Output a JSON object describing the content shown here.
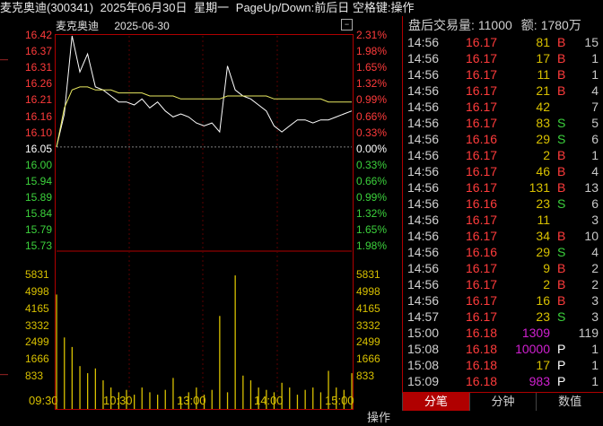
{
  "title": {
    "name_code": "麦克奥迪(300341)",
    "date": "2025年06月30日",
    "weekday": "星期一",
    "hint": "PageUp/Down:前后日 空格键:操作"
  },
  "chart": {
    "stock_name": "麦克奥迪",
    "date": "2025-06-30",
    "toggle_icon": "minus-box-icon",
    "price_labels": [
      {
        "price": "16.42",
        "pct": "2.31%",
        "kind": "up"
      },
      {
        "price": "16.37",
        "pct": "1.98%",
        "kind": "up"
      },
      {
        "price": "16.31",
        "pct": "1.65%",
        "kind": "up"
      },
      {
        "price": "16.26",
        "pct": "1.32%",
        "kind": "up"
      },
      {
        "price": "16.21",
        "pct": "0.99%",
        "kind": "up"
      },
      {
        "price": "16.16",
        "pct": "0.66%",
        "kind": "up"
      },
      {
        "price": "16.10",
        "pct": "0.33%",
        "kind": "up"
      },
      {
        "price": "16.05",
        "pct": "0.00%",
        "kind": "base"
      },
      {
        "price": "16.00",
        "pct": "0.33%",
        "kind": "down"
      },
      {
        "price": "15.94",
        "pct": "0.66%",
        "kind": "down"
      },
      {
        "price": "15.89",
        "pct": "0.99%",
        "kind": "down"
      },
      {
        "price": "15.84",
        "pct": "1.32%",
        "kind": "down"
      },
      {
        "price": "15.79",
        "pct": "1.65%",
        "kind": "down"
      },
      {
        "price": "15.73",
        "pct": "1.98%",
        "kind": "down"
      }
    ],
    "volume_labels": [
      "5831",
      "4998",
      "4165",
      "3332",
      "2499",
      "1666",
      "833"
    ],
    "time_labels": [
      "09:30",
      "10:30",
      "13:00",
      "14:00",
      "15:00"
    ],
    "op_button": "操作"
  },
  "chart_data": {
    "type": "line",
    "series": [
      {
        "values": [
          16.05,
          16.16,
          16.42,
          16.3,
          16.36,
          16.25,
          16.24,
          16.22,
          16.2,
          16.2,
          16.19,
          16.21,
          16.18,
          16.2,
          16.17,
          16.15,
          16.16,
          16.15,
          16.13,
          16.12,
          16.13,
          16.1,
          16.32,
          16.24,
          16.22,
          16.21,
          16.19,
          16.17,
          16.12,
          16.1,
          16.12,
          16.14,
          16.14,
          16.13,
          16.14,
          16.14,
          16.15,
          16.16,
          16.17
        ]
      },
      {
        "values": [
          16.05,
          16.18,
          16.24,
          16.25,
          16.25,
          16.24,
          16.24,
          16.24,
          16.23,
          16.23,
          16.23,
          16.23,
          16.22,
          16.22,
          16.22,
          16.22,
          16.21,
          16.21,
          16.21,
          16.21,
          16.21,
          16.21,
          16.22,
          16.22,
          16.22,
          16.22,
          16.22,
          16.22,
          16.21,
          16.21,
          16.21,
          16.21,
          16.21,
          16.21,
          16.21,
          16.2,
          16.2,
          16.2,
          16.2
        ]
      }
    ],
    "volume": [
      4800,
      3000,
      2600,
      1800,
      1500,
      1700,
      1200,
      900,
      700,
      800,
      600,
      900,
      700,
      600,
      800,
      1300,
      500,
      700,
      900,
      600,
      800,
      3900,
      700,
      5600,
      1400,
      1200,
      900,
      800,
      700,
      1100,
      900,
      600,
      800,
      900,
      700,
      1600,
      900,
      800,
      1500
    ],
    "ylim": [
      15.73,
      16.42
    ],
    "vol_max": 5831
  },
  "side": {
    "label_volume": "盘后交易量:",
    "volume": "11000",
    "label_amount": "额:",
    "amount": "1780万",
    "rows": [
      {
        "time": "14:56",
        "price": "16.17",
        "vol": "81",
        "bs": "B",
        "cnt": "15",
        "pc": "red",
        "vc": "yellow",
        "bc": "red"
      },
      {
        "time": "14:56",
        "price": "16.17",
        "vol": "17",
        "bs": "B",
        "cnt": "1",
        "pc": "red",
        "vc": "yellow",
        "bc": "red"
      },
      {
        "time": "14:56",
        "price": "16.17",
        "vol": "11",
        "bs": "B",
        "cnt": "1",
        "pc": "red",
        "vc": "yellow",
        "bc": "red"
      },
      {
        "time": "14:56",
        "price": "16.17",
        "vol": "21",
        "bs": "B",
        "cnt": "4",
        "pc": "red",
        "vc": "yellow",
        "bc": "red"
      },
      {
        "time": "14:56",
        "price": "16.17",
        "vol": "42",
        "bs": "",
        "cnt": "7",
        "pc": "red",
        "vc": "yellow",
        "bc": "red"
      },
      {
        "time": "14:56",
        "price": "16.17",
        "vol": "83",
        "bs": "S",
        "cnt": "5",
        "pc": "red",
        "vc": "yellow",
        "bc": "green"
      },
      {
        "time": "14:56",
        "price": "16.16",
        "vol": "29",
        "bs": "S",
        "cnt": "6",
        "pc": "red",
        "vc": "yellow",
        "bc": "green"
      },
      {
        "time": "14:56",
        "price": "16.17",
        "vol": "2",
        "bs": "B",
        "cnt": "1",
        "pc": "red",
        "vc": "yellow",
        "bc": "red"
      },
      {
        "time": "14:56",
        "price": "16.17",
        "vol": "46",
        "bs": "B",
        "cnt": "4",
        "pc": "red",
        "vc": "yellow",
        "bc": "red"
      },
      {
        "time": "14:56",
        "price": "16.17",
        "vol": "131",
        "bs": "B",
        "cnt": "13",
        "pc": "red",
        "vc": "yellow",
        "bc": "red"
      },
      {
        "time": "14:56",
        "price": "16.16",
        "vol": "23",
        "bs": "S",
        "cnt": "6",
        "pc": "red",
        "vc": "yellow",
        "bc": "green"
      },
      {
        "time": "14:56",
        "price": "16.17",
        "vol": "11",
        "bs": "",
        "cnt": "3",
        "pc": "red",
        "vc": "yellow",
        "bc": "red"
      },
      {
        "time": "14:56",
        "price": "16.17",
        "vol": "34",
        "bs": "B",
        "cnt": "10",
        "pc": "red",
        "vc": "yellow",
        "bc": "red"
      },
      {
        "time": "14:56",
        "price": "16.16",
        "vol": "29",
        "bs": "S",
        "cnt": "4",
        "pc": "red",
        "vc": "yellow",
        "bc": "green"
      },
      {
        "time": "14:56",
        "price": "16.17",
        "vol": "9",
        "bs": "B",
        "cnt": "2",
        "pc": "red",
        "vc": "yellow",
        "bc": "red"
      },
      {
        "time": "14:56",
        "price": "16.17",
        "vol": "2",
        "bs": "B",
        "cnt": "2",
        "pc": "red",
        "vc": "yellow",
        "bc": "red"
      },
      {
        "time": "14:56",
        "price": "16.17",
        "vol": "16",
        "bs": "B",
        "cnt": "3",
        "pc": "red",
        "vc": "yellow",
        "bc": "red"
      },
      {
        "time": "14:57",
        "price": "16.17",
        "vol": "23",
        "bs": "S",
        "cnt": "3",
        "pc": "red",
        "vc": "yellow",
        "bc": "green"
      },
      {
        "time": "15:00",
        "price": "16.18",
        "vol": "1309",
        "bs": "",
        "cnt": "119",
        "pc": "red",
        "vc": "purple",
        "bc": "red"
      },
      {
        "time": "15:08",
        "price": "16.18",
        "vol": "10000",
        "bs": "P",
        "cnt": "1",
        "pc": "red",
        "vc": "purple",
        "bc": "white"
      },
      {
        "time": "15:08",
        "price": "16.18",
        "vol": "17",
        "bs": "P",
        "cnt": "1",
        "pc": "red",
        "vc": "yellow",
        "bc": "white"
      },
      {
        "time": "15:09",
        "price": "16.18",
        "vol": "983",
        "bs": "P",
        "cnt": "1",
        "pc": "red",
        "vc": "purple",
        "bc": "white"
      }
    ],
    "tabs": [
      {
        "label": "分笔",
        "active": true
      },
      {
        "label": "分钟",
        "active": false
      },
      {
        "label": "数值",
        "active": false
      }
    ]
  },
  "colors": {
    "up": "#ff3b3b",
    "down": "#3cd23c",
    "price_line": "#ffffff",
    "avg_line": "#e8e860",
    "volume_bar": "#d8c000",
    "frame": "#b00000"
  }
}
